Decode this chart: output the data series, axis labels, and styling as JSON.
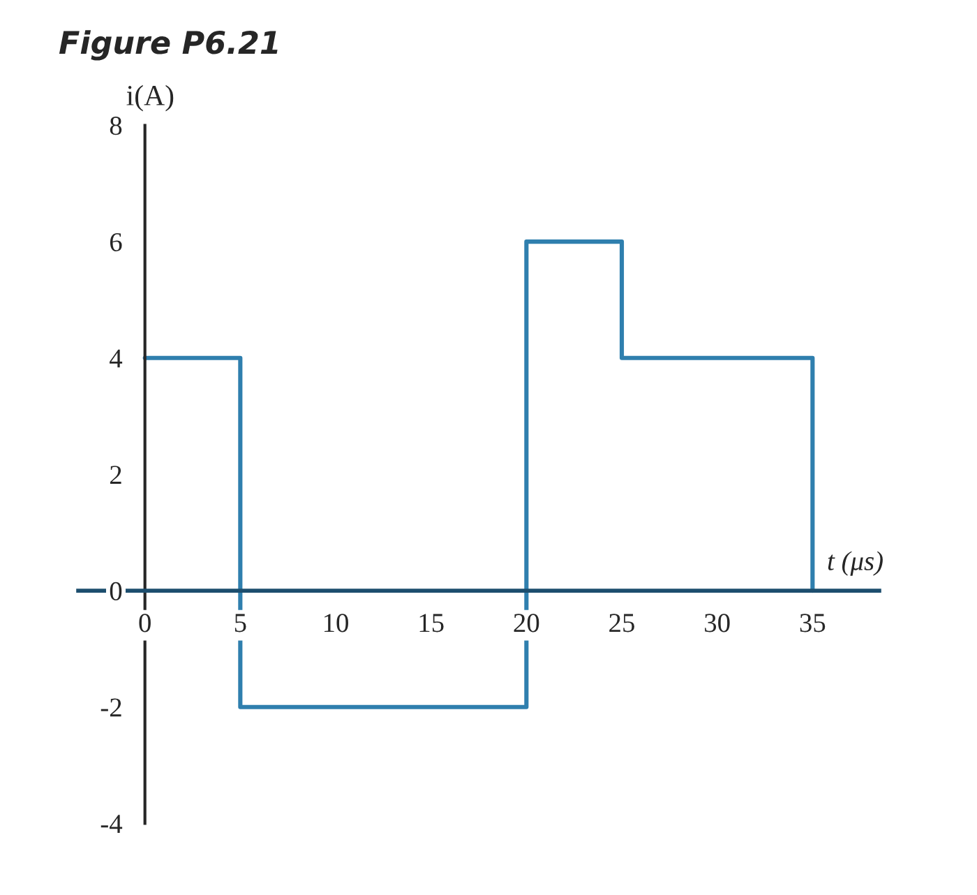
{
  "chart_data": {
    "type": "step",
    "title": "Figure P6.21",
    "xlabel": "t (μs)",
    "ylabel": "i(A)",
    "x": [
      0,
      5,
      20,
      25,
      35
    ],
    "series": [
      {
        "color": "#2f7fae",
        "values": [
          4,
          -2,
          6,
          4,
          0
        ]
      }
    ],
    "xlim": [
      -3.5,
      38.5
    ],
    "xticks": [
      0,
      5,
      10,
      15,
      20,
      25,
      30,
      35
    ],
    "ylim": [
      -4,
      8
    ],
    "yticks": [
      -4,
      -2,
      0,
      2,
      4,
      6,
      8
    ],
    "grid": false
  }
}
